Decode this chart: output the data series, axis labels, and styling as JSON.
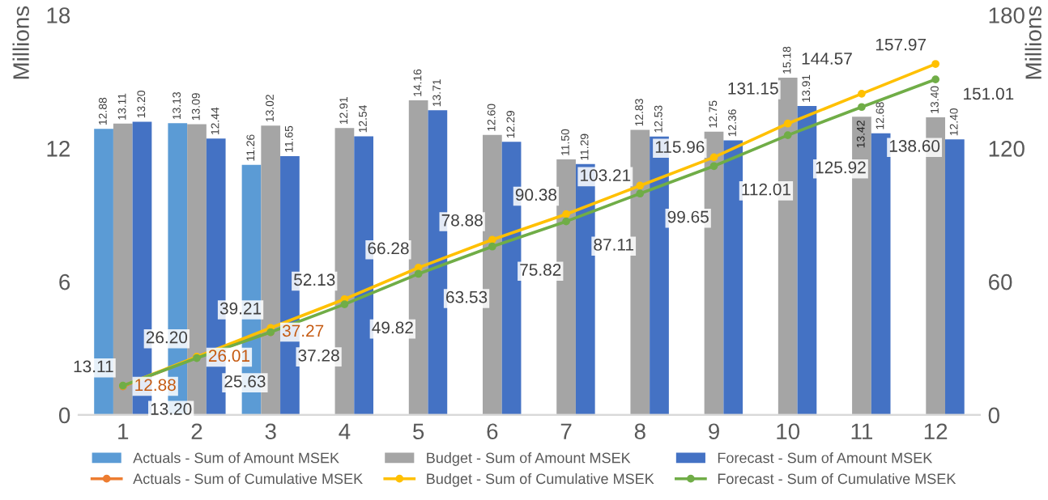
{
  "chart_data": {
    "type": "bar",
    "ylabel": "Millions",
    "y2label": "Millions",
    "categories": [
      "1",
      "2",
      "3",
      "4",
      "5",
      "6",
      "7",
      "8",
      "9",
      "10",
      "11",
      "12"
    ],
    "series": [
      {
        "name": "Actuals - Sum of Amount MSEK",
        "color": "#5b9bd5",
        "values": [
          12.88,
          13.13,
          11.26,
          null,
          null,
          null,
          null,
          null,
          null,
          null,
          null,
          null
        ],
        "value_labels": [
          "12.88",
          "13.13",
          "11.26",
          null,
          null,
          null,
          null,
          null,
          null,
          null,
          null,
          null
        ]
      },
      {
        "name": "Budget - Sum of Amount MSEK",
        "color": "#a5a5a5",
        "values": [
          13.11,
          13.09,
          13.02,
          12.91,
          14.16,
          12.6,
          11.5,
          12.83,
          12.75,
          15.18,
          13.42,
          13.4
        ],
        "value_labels": [
          "13.11",
          "13.09",
          "13.02",
          "12.91",
          "14.16",
          "12.60",
          "11.50",
          "12.83",
          "12.75",
          "15.18",
          "13.42",
          "13.40"
        ]
      },
      {
        "name": "Forecast - Sum of Amount MSEK",
        "color": "#4472c4",
        "values": [
          13.2,
          12.44,
          11.65,
          12.54,
          13.71,
          12.29,
          11.29,
          12.53,
          12.36,
          13.91,
          12.68,
          12.4
        ],
        "value_labels": [
          "13.20",
          "12.44",
          "11.65",
          "12.54",
          "13.71",
          "12.29",
          "11.29",
          "12.53",
          "12.36",
          "13.91",
          "12.68",
          "12.40"
        ]
      },
      {
        "name": "Actuals - Sum of Cumulative MSEK",
        "color": "#ed7d31",
        "type": "line",
        "axis": "y2",
        "values": [
          12.88,
          26.01,
          37.27,
          null,
          null,
          null,
          null,
          null,
          null,
          null,
          null,
          null
        ],
        "value_labels": [
          "12.88",
          "26.01",
          "37.27",
          null,
          null,
          null,
          null,
          null,
          null,
          null,
          null,
          null
        ]
      },
      {
        "name": "Budget - Sum of Cumulative MSEK",
        "color": "#ffc000",
        "type": "line",
        "axis": "y2",
        "values": [
          13.11,
          26.2,
          39.21,
          52.13,
          66.28,
          78.88,
          90.38,
          103.21,
          115.96,
          131.15,
          144.57,
          157.97
        ],
        "value_labels": [
          "13.11",
          "26.20",
          "39.21",
          "52.13",
          "66.28",
          "78.88",
          "90.38",
          "103.21",
          "115.96",
          "131.15",
          "144.57",
          "157.97"
        ]
      },
      {
        "name": "Forecast - Sum of Cumulative MSEK",
        "color": "#70ad47",
        "type": "line",
        "axis": "y2",
        "values": [
          13.2,
          25.63,
          37.28,
          49.82,
          63.53,
          75.82,
          87.11,
          99.65,
          112.01,
          125.92,
          138.6,
          151.01
        ],
        "value_labels": [
          "13.20",
          "25.63",
          "37.28",
          "49.82",
          "63.53",
          "75.82",
          "87.11",
          "99.65",
          "112.01",
          "125.92",
          "138.60",
          "151.01"
        ]
      }
    ],
    "ylim": [
      0,
      18
    ],
    "yticks": [
      0,
      6,
      12,
      18
    ],
    "y2lim": [
      0,
      180
    ],
    "y2ticks": [
      0,
      60,
      120,
      180
    ],
    "data_labels": true,
    "legend": "bottom",
    "grid": false,
    "marker": "circle",
    "line_style": "solid"
  }
}
